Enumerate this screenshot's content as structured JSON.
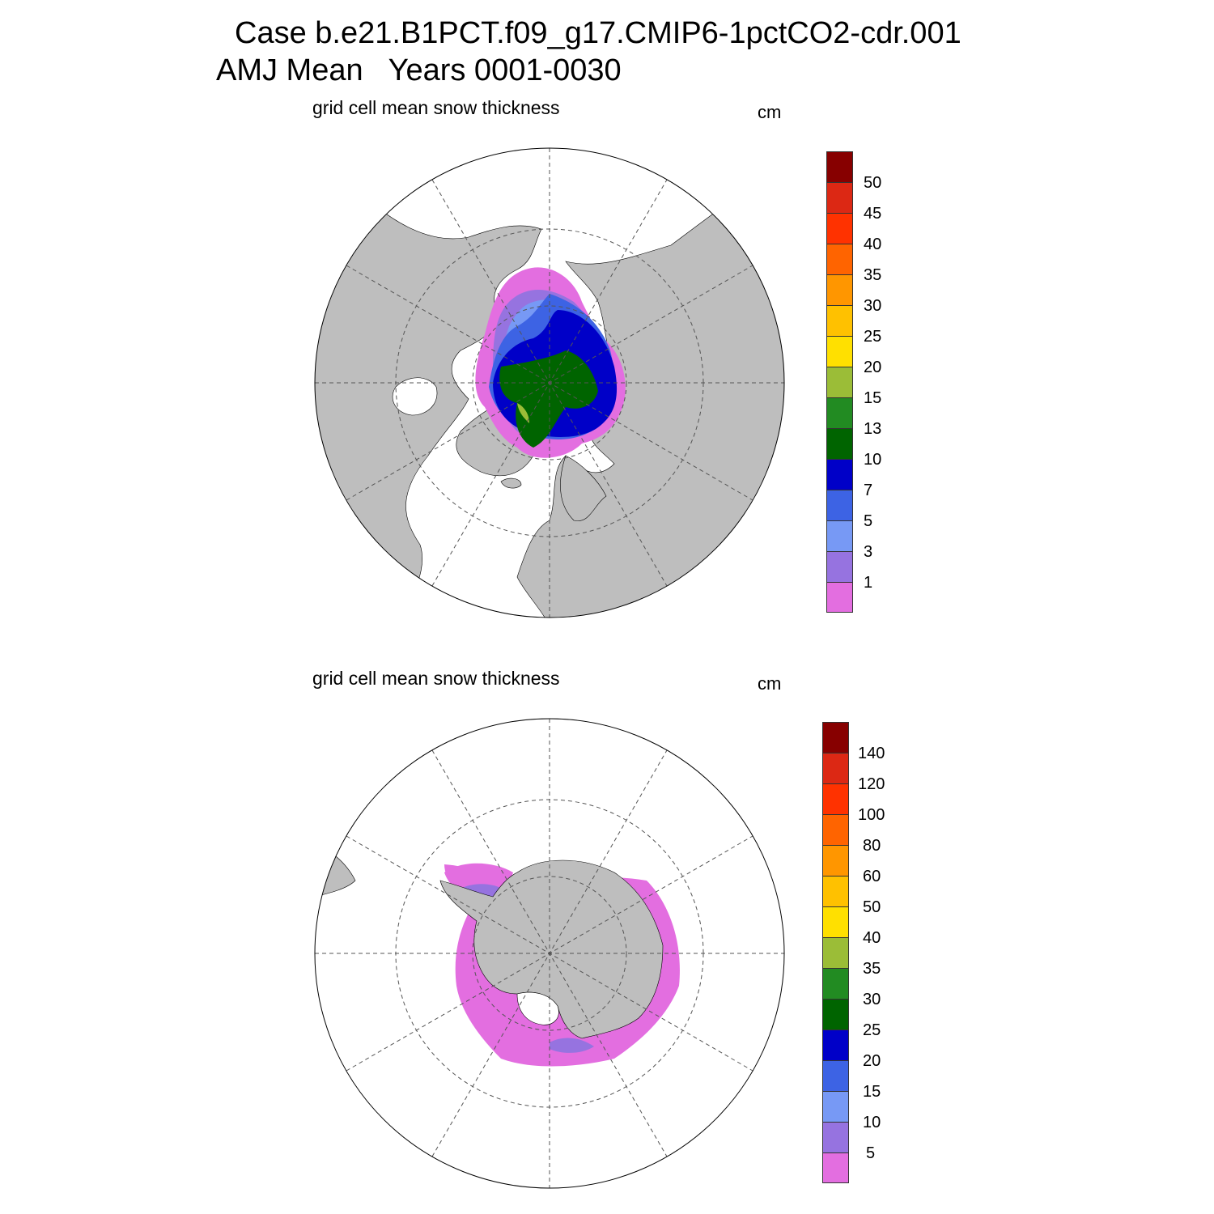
{
  "title": {
    "line1": "Case b.e21.B1PCT.f09_g17.CMIP6-1pctCO2-cdr.001",
    "line2": "AMJ Mean   Years 0001-0030"
  },
  "panels": [
    {
      "id": "north",
      "variable": "grid cell mean snow thickness",
      "units": "cm",
      "colorbar": {
        "colors": [
          "#e36ee0",
          "#9673e0",
          "#7799f5",
          "#3d63e4",
          "#0000c8",
          "#006400",
          "#228b22",
          "#9bbd37",
          "#ffe000",
          "#ffc100",
          "#ff9600",
          "#ff6400",
          "#ff3200",
          "#dc2814",
          "#870000"
        ],
        "labels": [
          "1",
          "3",
          "5",
          "7",
          "10",
          "13",
          "15",
          "20",
          "25",
          "30",
          "35",
          "40",
          "45",
          "50"
        ]
      }
    },
    {
      "id": "south",
      "variable": "grid cell mean snow thickness",
      "units": "cm",
      "colorbar": {
        "colors": [
          "#e36ee0",
          "#9673e0",
          "#7799f5",
          "#3d63e4",
          "#0000c8",
          "#006400",
          "#228b22",
          "#9bbd37",
          "#ffe000",
          "#ffc100",
          "#ff9600",
          "#ff6400",
          "#ff3200",
          "#dc2814",
          "#870000"
        ],
        "labels": [
          "5",
          "10",
          "15",
          "20",
          "25",
          "30",
          "35",
          "40",
          "50",
          "60",
          "80",
          "100",
          "120",
          "140"
        ]
      }
    }
  ],
  "colors": {
    "land": "#bebebe",
    "ocean": "#ffffff",
    "grid": "#555555"
  }
}
